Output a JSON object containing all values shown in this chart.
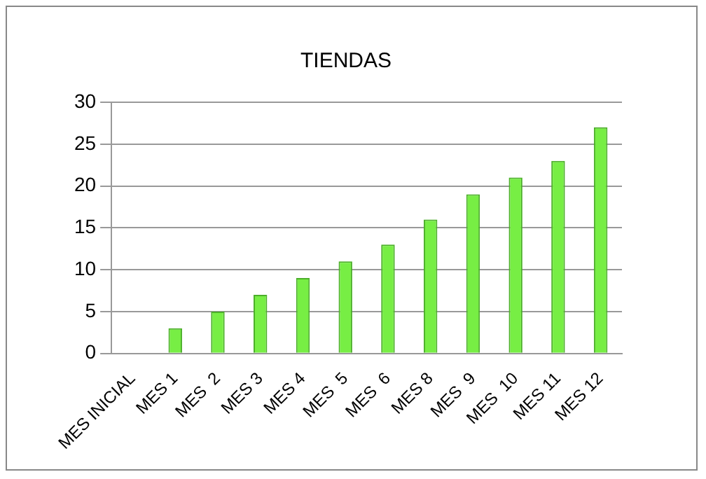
{
  "chart_data": {
    "type": "bar",
    "title": "TIENDAS",
    "categories": [
      "MES INICIAL",
      "MES 1",
      "MES  2",
      "MES 3",
      "MES 4",
      "MES  5",
      "MES  6",
      "MES 8",
      "MES  9",
      "MES  10",
      "MES 11",
      "MES 12"
    ],
    "values": [
      0,
      3,
      5,
      7,
      9,
      11,
      13,
      16,
      19,
      21,
      23,
      27
    ],
    "color": "#77ee44",
    "ylim": [
      0,
      30
    ],
    "yticks": [
      0,
      5,
      10,
      15,
      20,
      25,
      30
    ],
    "grid": "y",
    "legend": false
  }
}
